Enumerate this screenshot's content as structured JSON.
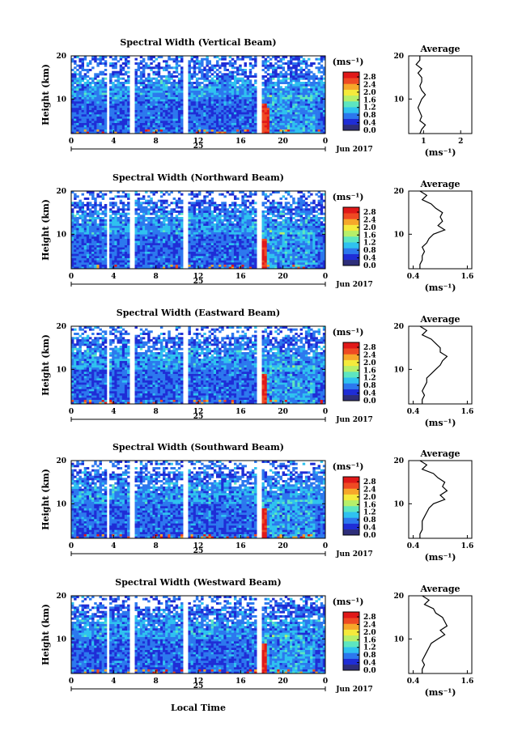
{
  "figure": {
    "x_label": "Local Time",
    "date_label": "Jun 2017",
    "day_label": "25"
  },
  "colorbar": {
    "unit": "(ms⁻¹)",
    "ticks": [
      "2.8",
      "2.4",
      "2.0",
      "1.6",
      "1.2",
      "0.8",
      "0.4",
      "0.0"
    ],
    "colors": [
      "#2e2e7a",
      "#1f2dd6",
      "#2c78ee",
      "#2fc2ef",
      "#5de6c0",
      "#b6ef6a",
      "#f5ea3c",
      "#f6a72a",
      "#ef4a23",
      "#e01818"
    ]
  },
  "chart_data": [
    {
      "type": "heatmap",
      "title": "Spectral Width (Vertical Beam)",
      "ylabel": "Height (km)",
      "xlabel": "Local Time",
      "x_ticks": [
        "0",
        "4",
        "8",
        "12",
        "16",
        "20",
        "0"
      ],
      "y_ticks": [
        "20",
        "10"
      ],
      "xlim": [
        0,
        24
      ],
      "ylim": [
        2,
        20
      ],
      "data_gaps_hours": [
        [
          3.4,
          3.7
        ],
        [
          5.6,
          5.9
        ],
        [
          10.6,
          11.0
        ],
        [
          17.6,
          17.9
        ]
      ],
      "colorbar_range": [
        0.0,
        3.0
      ],
      "average_profile": {
        "title": "Average",
        "xlabel": "(ms⁻¹)",
        "x_ticks": [
          "1",
          "2"
        ],
        "xlim": [
          0.6,
          2.3
        ],
        "y_ticks": [
          "20",
          "10"
        ],
        "heights_km": [
          2,
          3,
          4,
          5,
          6,
          7,
          8,
          9,
          10,
          11,
          12,
          13,
          14,
          15,
          16,
          17,
          18,
          19,
          20
        ],
        "values": [
          0.9,
          0.95,
          1.05,
          0.9,
          0.95,
          0.9,
          0.85,
          0.9,
          0.95,
          1.05,
          0.95,
          0.9,
          0.95,
          0.95,
          0.85,
          0.95,
          0.8,
          0.9,
          0.9
        ]
      }
    },
    {
      "type": "heatmap",
      "title": "Spectral Width (Northward Beam)",
      "ylabel": "Height (km)",
      "xlabel": "Local Time",
      "x_ticks": [
        "0",
        "4",
        "8",
        "12",
        "16",
        "20",
        "0"
      ],
      "y_ticks": [
        "20",
        "10"
      ],
      "xlim": [
        0,
        24
      ],
      "ylim": [
        2,
        20
      ],
      "data_gaps_hours": [
        [
          3.4,
          3.7
        ],
        [
          5.6,
          5.9
        ],
        [
          10.6,
          11.0
        ],
        [
          17.6,
          17.9
        ]
      ],
      "colorbar_range": [
        0.0,
        3.0
      ],
      "average_profile": {
        "title": "Average",
        "xlabel": "(ms⁻¹)",
        "x_ticks": [
          "0.4",
          "1.6"
        ],
        "xlim": [
          0.3,
          1.7
        ],
        "y_ticks": [
          "20",
          "10"
        ],
        "heights_km": [
          2,
          3,
          4,
          5,
          6,
          7,
          8,
          9,
          10,
          11,
          12,
          13,
          14,
          15,
          16,
          17,
          18,
          19,
          20
        ],
        "values": [
          0.55,
          0.55,
          0.6,
          0.6,
          0.65,
          0.6,
          0.7,
          0.75,
          0.85,
          1.1,
          0.95,
          1.05,
          1.0,
          1.05,
          0.9,
          0.8,
          0.6,
          0.7,
          0.55
        ]
      }
    },
    {
      "type": "heatmap",
      "title": "Spectral Width (Eastward Beam)",
      "ylabel": "Height (km)",
      "xlabel": "Local Time",
      "x_ticks": [
        "0",
        "4",
        "8",
        "12",
        "16",
        "20",
        "0"
      ],
      "y_ticks": [
        "20",
        "10"
      ],
      "xlim": [
        0,
        24
      ],
      "ylim": [
        2,
        20
      ],
      "data_gaps_hours": [
        [
          3.4,
          3.7
        ],
        [
          5.6,
          5.9
        ],
        [
          10.6,
          11.0
        ],
        [
          17.6,
          17.9
        ]
      ],
      "colorbar_range": [
        0.0,
        3.0
      ],
      "average_profile": {
        "title": "Average",
        "xlabel": "(ms⁻¹)",
        "x_ticks": [
          "0.4",
          "1.6"
        ],
        "xlim": [
          0.3,
          1.7
        ],
        "y_ticks": [
          "20",
          "10"
        ],
        "heights_km": [
          2,
          3,
          4,
          5,
          6,
          7,
          8,
          9,
          10,
          11,
          12,
          13,
          14,
          15,
          16,
          17,
          18,
          19,
          20
        ],
        "values": [
          0.6,
          0.6,
          0.65,
          0.6,
          0.65,
          0.7,
          0.7,
          0.8,
          0.9,
          1.0,
          1.05,
          1.15,
          1.0,
          1.0,
          0.9,
          0.8,
          0.6,
          0.7,
          0.55
        ]
      }
    },
    {
      "type": "heatmap",
      "title": "Spectral Width (Southward Beam)",
      "ylabel": "Height (km)",
      "xlabel": "Local Time",
      "x_ticks": [
        "0",
        "4",
        "8",
        "12",
        "16",
        "20",
        "0"
      ],
      "y_ticks": [
        "20",
        "10"
      ],
      "xlim": [
        0,
        24
      ],
      "ylim": [
        2,
        20
      ],
      "data_gaps_hours": [
        [
          3.4,
          3.7
        ],
        [
          5.6,
          5.9
        ],
        [
          10.6,
          11.0
        ],
        [
          17.6,
          17.9
        ]
      ],
      "colorbar_range": [
        0.0,
        3.0
      ],
      "average_profile": {
        "title": "Average",
        "xlabel": "(ms⁻¹)",
        "x_ticks": [
          "0.4",
          "1.6"
        ],
        "xlim": [
          0.3,
          1.7
        ],
        "y_ticks": [
          "20",
          "10"
        ],
        "heights_km": [
          2,
          3,
          4,
          5,
          6,
          7,
          8,
          9,
          10,
          11,
          12,
          13,
          14,
          15,
          16,
          17,
          18,
          19,
          20
        ],
        "values": [
          0.55,
          0.55,
          0.6,
          0.6,
          0.6,
          0.65,
          0.7,
          0.75,
          0.85,
          1.1,
          1.0,
          1.15,
          1.05,
          1.1,
          0.95,
          0.85,
          0.6,
          0.7,
          0.55
        ]
      }
    },
    {
      "type": "heatmap",
      "title": "Spectral Width (Westward Beam)",
      "ylabel": "Height (km)",
      "xlabel": "Local Time",
      "x_ticks": [
        "0",
        "4",
        "8",
        "12",
        "16",
        "20",
        "0"
      ],
      "y_ticks": [
        "20",
        "10"
      ],
      "xlim": [
        0,
        24
      ],
      "ylim": [
        2,
        20
      ],
      "data_gaps_hours": [
        [
          3.4,
          3.7
        ],
        [
          5.6,
          5.9
        ],
        [
          10.6,
          11.0
        ],
        [
          17.6,
          17.9
        ]
      ],
      "colorbar_range": [
        0.0,
        3.0
      ],
      "average_profile": {
        "title": "Average",
        "xlabel": "(ms⁻¹)",
        "x_ticks": [
          "0.4",
          "1.6"
        ],
        "xlim": [
          0.3,
          1.7
        ],
        "y_ticks": [
          "20",
          "10"
        ],
        "heights_km": [
          2,
          3,
          4,
          5,
          6,
          7,
          8,
          9,
          10,
          11,
          12,
          13,
          14,
          15,
          16,
          17,
          18,
          19,
          20
        ],
        "values": [
          0.6,
          0.6,
          0.65,
          0.6,
          0.65,
          0.7,
          0.75,
          0.8,
          0.95,
          1.1,
          1.0,
          1.15,
          1.1,
          1.05,
          0.9,
          0.85,
          0.65,
          0.75,
          0.6
        ]
      }
    }
  ]
}
